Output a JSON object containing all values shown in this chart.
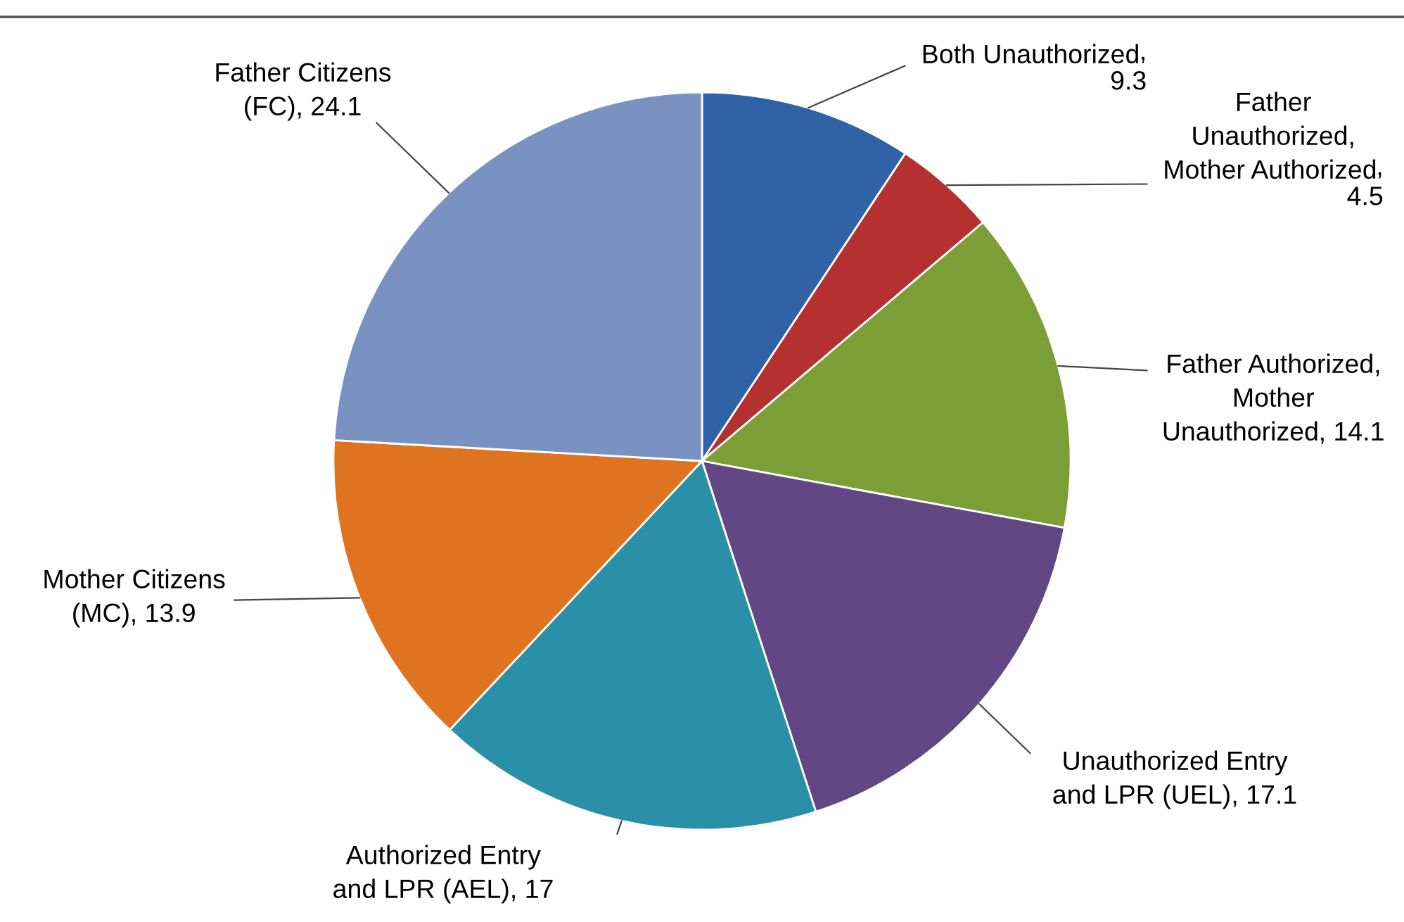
{
  "chart_data": {
    "type": "pie",
    "categories": [
      "Both Unauthorized",
      "Father Unauthorized, Mother Authorized",
      "Father Authorized, Mother Unauthorized",
      "Unauthorized Entry and LPR (UEL)",
      "Authorized Entry and LPR (AEL)",
      "Mother Citizens (MC)",
      "Father Citizens (FC)"
    ],
    "values": [
      9.3,
      4.5,
      14.1,
      17.1,
      17,
      13.9,
      24.1
    ],
    "colors": [
      "#2f62a6",
      "#b5312f",
      "#7c9e36",
      "#634785",
      "#2a90a8",
      "#e0731f",
      "#7a92c2"
    ],
    "value_labels": [
      ", 9.3",
      ", 4.5",
      ", 14.1",
      ", 17.1",
      ", 17",
      ", 13.9",
      ", 24.1"
    ],
    "legend": false
  }
}
